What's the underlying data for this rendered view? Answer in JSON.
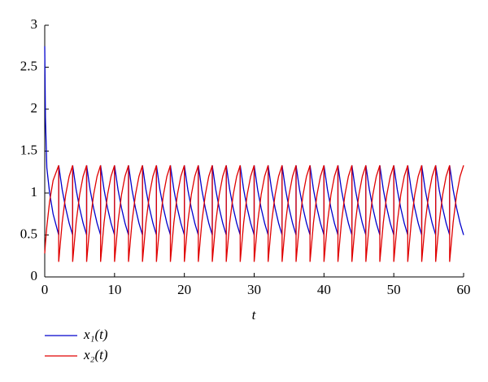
{
  "chart_data": {
    "type": "line",
    "x_label": "t",
    "x": [
      0,
      0.1,
      0.3,
      0.7,
      1.2,
      2,
      2,
      2.5,
      3,
      3.5,
      4,
      4,
      4.5,
      5,
      5.5,
      6,
      6,
      6.5,
      7,
      7.5,
      8,
      8,
      8.5,
      9,
      9.5,
      10,
      10,
      10.5,
      11,
      11.5,
      12,
      12,
      12.5,
      13,
      13.5,
      14,
      14,
      14.5,
      15,
      15.5,
      16,
      16,
      16.5,
      17,
      17.5,
      18,
      18,
      18.5,
      19,
      19.5,
      20,
      20,
      20.5,
      21,
      21.5,
      22,
      22,
      22.5,
      23,
      23.5,
      24,
      24,
      24.5,
      25,
      25.5,
      26,
      26,
      26.5,
      27,
      27.5,
      28,
      28,
      28.5,
      29,
      29.5,
      30,
      30,
      30.5,
      31,
      31.5,
      32,
      32,
      32.5,
      33,
      33.5,
      34,
      34,
      34.5,
      35,
      35.5,
      36,
      36,
      36.5,
      37,
      37.5,
      38,
      38,
      38.5,
      39,
      39.5,
      40,
      40,
      40.5,
      41,
      41.5,
      42,
      42,
      42.5,
      43,
      43.5,
      44,
      44,
      44.5,
      45,
      45.5,
      46,
      46,
      46.5,
      47,
      47.5,
      48,
      48,
      48.5,
      49,
      49.5,
      50,
      50,
      50.5,
      51,
      51.5,
      52,
      52,
      52.5,
      53,
      53.5,
      54,
      54,
      54.5,
      55,
      55.5,
      56,
      56,
      56.5,
      57,
      57.5,
      58,
      58,
      58.5,
      59,
      59.5,
      60
    ],
    "series": [
      {
        "name": "x₁(t)",
        "color": "#0000cc",
        "values": [
          2.75,
          1.9,
          1.3,
          1.0,
          0.75,
          0.5,
          1.33,
          1.04,
          0.82,
          0.64,
          0.5,
          1.33,
          1.04,
          0.82,
          0.64,
          0.5,
          1.33,
          1.04,
          0.82,
          0.64,
          0.5,
          1.33,
          1.04,
          0.82,
          0.64,
          0.5,
          1.33,
          1.04,
          0.82,
          0.64,
          0.5,
          1.33,
          1.04,
          0.82,
          0.64,
          0.5,
          1.33,
          1.04,
          0.82,
          0.64,
          0.5,
          1.33,
          1.04,
          0.82,
          0.64,
          0.5,
          1.33,
          1.04,
          0.82,
          0.64,
          0.5,
          1.33,
          1.04,
          0.82,
          0.64,
          0.5,
          1.33,
          1.04,
          0.82,
          0.64,
          0.5,
          1.33,
          1.04,
          0.82,
          0.64,
          0.5,
          1.33,
          1.04,
          0.82,
          0.64,
          0.5,
          1.33,
          1.04,
          0.82,
          0.64,
          0.5,
          1.33,
          1.04,
          0.82,
          0.64,
          0.5,
          1.33,
          1.04,
          0.82,
          0.64,
          0.5,
          1.33,
          1.04,
          0.82,
          0.64,
          0.5,
          1.33,
          1.04,
          0.82,
          0.64,
          0.5,
          1.33,
          1.04,
          0.82,
          0.64,
          0.5,
          1.33,
          1.04,
          0.82,
          0.64,
          0.5,
          1.33,
          1.04,
          0.82,
          0.64,
          0.5,
          1.33,
          1.04,
          0.82,
          0.64,
          0.5,
          1.33,
          1.04,
          0.82,
          0.64,
          0.5,
          1.33,
          1.04,
          0.82,
          0.64,
          0.5,
          1.33,
          1.04,
          0.82,
          0.64,
          0.5,
          1.33,
          1.04,
          0.82,
          0.64,
          0.5,
          1.33,
          1.04,
          0.82,
          0.64,
          0.5,
          1.33,
          1.04,
          0.82,
          0.64,
          0.5,
          1.33,
          1.04,
          0.82,
          0.64,
          0.5
        ]
      },
      {
        "name": "x₂(t)",
        "color": "#e00000",
        "values": [
          0.28,
          0.4,
          0.6,
          0.9,
          1.15,
          1.33,
          0.18,
          0.65,
          0.98,
          1.2,
          1.33,
          0.18,
          0.65,
          0.98,
          1.2,
          1.33,
          0.18,
          0.65,
          0.98,
          1.2,
          1.33,
          0.18,
          0.65,
          0.98,
          1.2,
          1.33,
          0.18,
          0.65,
          0.98,
          1.2,
          1.33,
          0.18,
          0.65,
          0.98,
          1.2,
          1.33,
          0.18,
          0.65,
          0.98,
          1.2,
          1.33,
          0.18,
          0.65,
          0.98,
          1.2,
          1.33,
          0.18,
          0.65,
          0.98,
          1.2,
          1.33,
          0.18,
          0.65,
          0.98,
          1.2,
          1.33,
          0.18,
          0.65,
          0.98,
          1.2,
          1.33,
          0.18,
          0.65,
          0.98,
          1.2,
          1.33,
          0.18,
          0.65,
          0.98,
          1.2,
          1.33,
          0.18,
          0.65,
          0.98,
          1.2,
          1.33,
          0.18,
          0.65,
          0.98,
          1.2,
          1.33,
          0.18,
          0.65,
          0.98,
          1.2,
          1.33,
          0.18,
          0.65,
          0.98,
          1.2,
          1.33,
          0.18,
          0.65,
          0.98,
          1.2,
          1.33,
          0.18,
          0.65,
          0.98,
          1.2,
          1.33,
          0.18,
          0.65,
          0.98,
          1.2,
          1.33,
          0.18,
          0.65,
          0.98,
          1.2,
          1.33,
          0.18,
          0.65,
          0.98,
          1.2,
          1.33,
          0.18,
          0.65,
          0.98,
          1.2,
          1.33,
          0.18,
          0.65,
          0.98,
          1.2,
          1.33,
          0.18,
          0.65,
          0.98,
          1.2,
          1.33,
          0.18,
          0.65,
          0.98,
          1.2,
          1.33,
          0.18,
          0.65,
          0.98,
          1.2,
          1.33,
          0.18,
          0.65,
          0.98,
          1.2,
          1.33,
          0.18,
          0.65,
          0.98,
          1.2,
          1.33
        ]
      }
    ],
    "xlim": [
      0,
      60
    ],
    "xticks": [
      0,
      10,
      20,
      30,
      40,
      50,
      60
    ],
    "ylim": [
      0,
      3
    ],
    "yticks": [
      0,
      0.5,
      1,
      1.5,
      2,
      2.5,
      3
    ],
    "grid": false,
    "legend": "below-left"
  }
}
